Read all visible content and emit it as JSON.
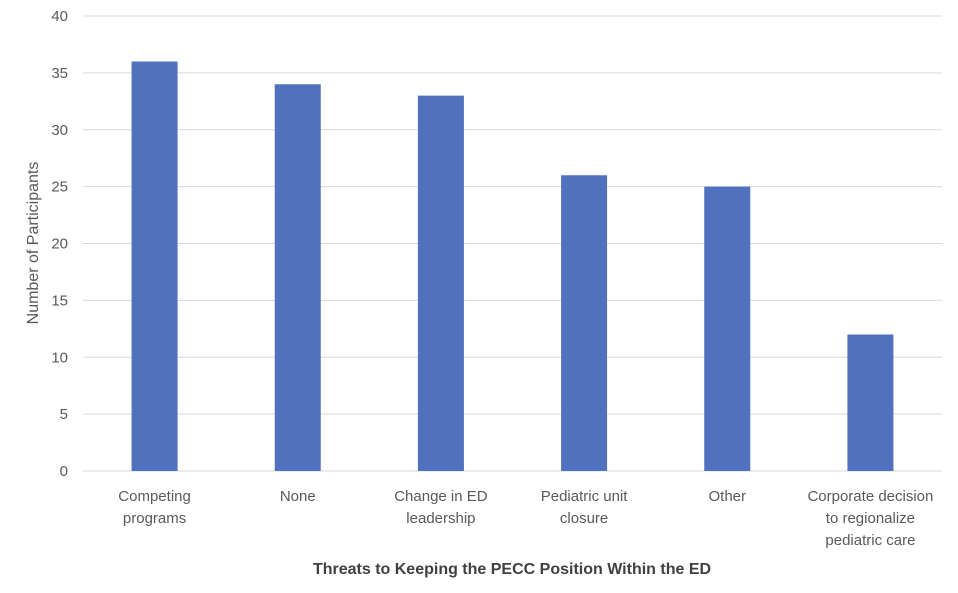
{
  "chart_data": {
    "type": "bar",
    "title": "",
    "xlabel": "Threats to Keeping the PECC Position Within the ED",
    "ylabel": "Number of Participants",
    "ylim": [
      0,
      40
    ],
    "yticks": [
      "0",
      "5",
      "10",
      "15",
      "20",
      "25",
      "30",
      "35",
      "40"
    ],
    "categories": [
      [
        "Competing",
        "programs"
      ],
      [
        "None"
      ],
      [
        "Change in ED",
        "leadership"
      ],
      [
        "Pediatric unit",
        "closure"
      ],
      [
        "Other"
      ],
      [
        "Corporate decision",
        "to regionalize",
        "pediatric care"
      ]
    ],
    "values": [
      36,
      34,
      33,
      26,
      25,
      12
    ],
    "grid": true,
    "legend": "none",
    "bar_color": "#4F71BE",
    "grid_color": "#D9D9D9"
  }
}
